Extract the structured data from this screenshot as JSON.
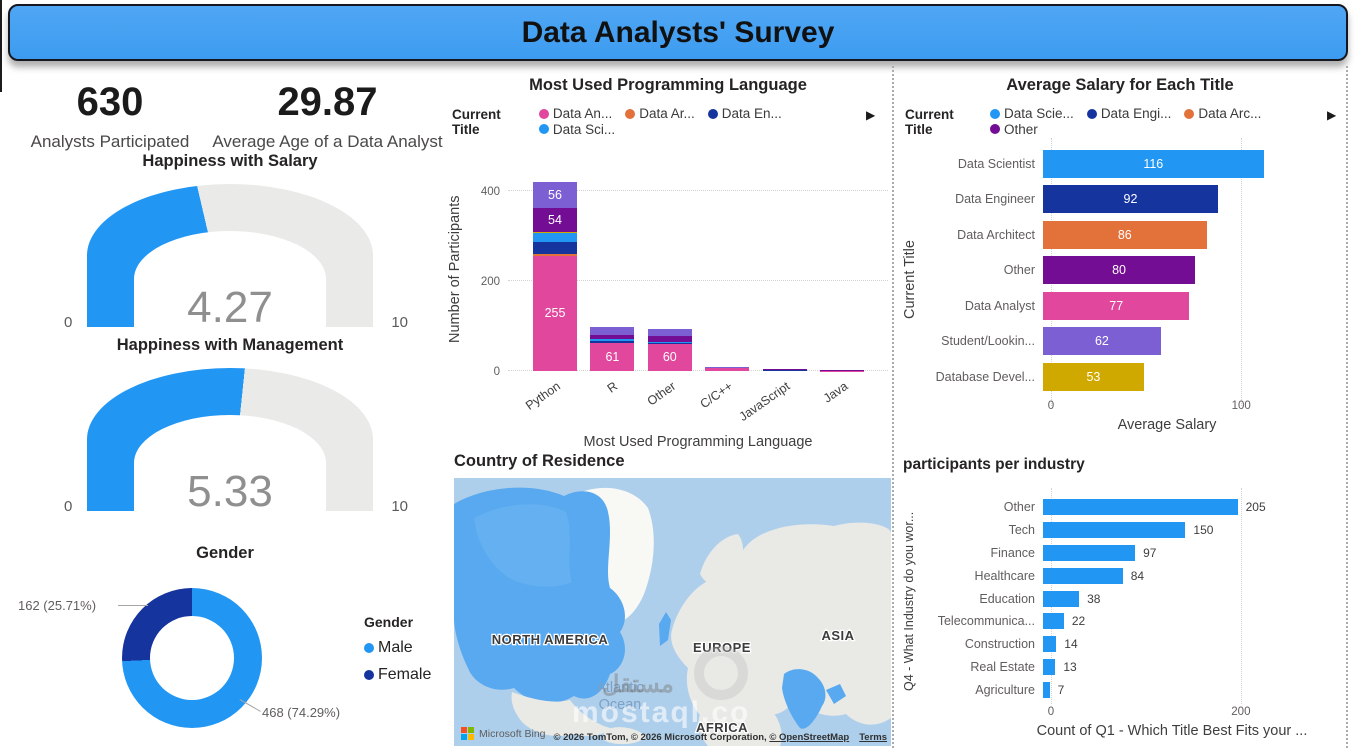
{
  "banner": {
    "title": "Data Analysts' Survey"
  },
  "kpis": [
    {
      "value": "630",
      "label": "Analysts Participated"
    },
    {
      "value": "29.87",
      "label": "Average Age of a Data Analyst"
    }
  ],
  "map": {
    "title": "Country of Residence",
    "labels": {
      "north_america": "NORTH AMERICA",
      "europe": "EUROPE",
      "asia": "ASIA",
      "africa": "AFRICA",
      "ocean1": "Atlantic",
      "ocean2": "Ocean"
    },
    "bing_logo_text": "Microsoft Bing",
    "attribution": "© 2026 TomTom, © 2026 Microsoft Corporation, ",
    "osm_link": "© OpenStreetMap",
    "terms_link": "Terms",
    "highlight_color": "#58A9EF",
    "land_color": "#E9E9E6",
    "ocean_color": "#AECFEB"
  },
  "watermark": {
    "arabic": "مستقل",
    "latin": "mostaql.co"
  },
  "chart_data": [
    {
      "id": "programming-language",
      "type": "bar",
      "stacked": true,
      "title": "Most Used Programming Language",
      "legend_title": "Current Title",
      "more_icon": "▶",
      "legend": [
        {
          "label": "Data An...",
          "color": "#E0479D"
        },
        {
          "label": "Data Ar...",
          "color": "#E2713A"
        },
        {
          "label": "Data En...",
          "color": "#16349E"
        },
        {
          "label": "Data Sci...",
          "color": "#2196F3"
        }
      ],
      "ylabel": "Number of Participants",
      "xlabel": "Most Used Programming Language",
      "yticks": [
        0,
        200,
        400
      ],
      "ymax": 450,
      "categories": [
        "Python",
        "R",
        "Other",
        "C/C++",
        "JavaScript",
        "Java"
      ],
      "bars": [
        {
          "category": "Python",
          "segments": [
            {
              "name": "Data Analyst",
              "value": 255,
              "color": "#E0479D",
              "show": true
            },
            {
              "name": "Data Architect",
              "value": 4,
              "color": "#E2713A"
            },
            {
              "name": "Data Engineer",
              "value": 28,
              "color": "#16349E"
            },
            {
              "name": "Data Scientist",
              "value": 18,
              "color": "#2196F3"
            },
            {
              "name": "Database Developer",
              "value": 3,
              "color": "#D0A900"
            },
            {
              "name": "Other",
              "value": 54,
              "color": "#730D93",
              "show": true
            },
            {
              "name": "Student/Looking",
              "value": 56,
              "color": "#7C5FD3",
              "show": true
            }
          ]
        },
        {
          "category": "R",
          "segments": [
            {
              "name": "Data Analyst",
              "value": 61,
              "color": "#E0479D",
              "show": true
            },
            {
              "name": "Data Engineer",
              "value": 5,
              "color": "#16349E"
            },
            {
              "name": "Data Scientist",
              "value": 4,
              "color": "#2196F3"
            },
            {
              "name": "Other",
              "value": 10,
              "color": "#730D93"
            },
            {
              "name": "Student/Looking",
              "value": 18,
              "color": "#7C5FD3"
            }
          ]
        },
        {
          "category": "Other",
          "segments": [
            {
              "name": "Data Analyst",
              "value": 60,
              "color": "#E0479D",
              "show": true
            },
            {
              "name": "Data Engineer",
              "value": 3,
              "color": "#16349E"
            },
            {
              "name": "Data Scientist",
              "value": 2,
              "color": "#2196F3"
            },
            {
              "name": "Other",
              "value": 12,
              "color": "#730D93"
            },
            {
              "name": "Student/Looking",
              "value": 16,
              "color": "#7C5FD3"
            }
          ]
        },
        {
          "category": "C/C++",
          "segments": [
            {
              "name": "Data Analyst",
              "value": 6,
              "color": "#E0479D"
            },
            {
              "name": "Student/Looking",
              "value": 2,
              "color": "#7C5FD3"
            }
          ]
        },
        {
          "category": "JavaScript",
          "segments": [
            {
              "name": "Data Engineer",
              "value": 3,
              "color": "#16349E"
            },
            {
              "name": "Other",
              "value": 2,
              "color": "#730D93"
            }
          ]
        },
        {
          "category": "Java",
          "segments": [
            {
              "name": "Data Analyst",
              "value": 1,
              "color": "#E0479D"
            },
            {
              "name": "Other",
              "value": 1,
              "color": "#730D93"
            }
          ]
        }
      ]
    },
    {
      "id": "average-salary",
      "type": "bar",
      "orientation": "horizontal",
      "title": "Average Salary for Each Title",
      "legend_title": "Current Title",
      "more_icon": "▶",
      "legend": [
        {
          "label": "Data Scie...",
          "color": "#2196F3"
        },
        {
          "label": "Data Engi...",
          "color": "#16349E"
        },
        {
          "label": "Data Arc...",
          "color": "#E2713A"
        },
        {
          "label": "Other",
          "color": "#730D93"
        }
      ],
      "ylabel": "Current Title",
      "xlabel": "Average Salary",
      "xticks": [
        0,
        100
      ],
      "xmax": 122,
      "value_inside": true,
      "bars": [
        {
          "label": "Data Scientist",
          "value": 116,
          "color": "#2196F3"
        },
        {
          "label": "Data Engineer",
          "value": 92,
          "color": "#16349E"
        },
        {
          "label": "Data Architect",
          "value": 86,
          "color": "#E2713A"
        },
        {
          "label": "Other",
          "value": 80,
          "color": "#730D93"
        },
        {
          "label": "Data Analyst",
          "value": 77,
          "color": "#E0479D"
        },
        {
          "label": "Student/Lookin...",
          "value": 62,
          "color": "#7C5FD3"
        },
        {
          "label": "Database Devel...",
          "value": 53,
          "color": "#D0A900"
        }
      ]
    },
    {
      "id": "participants-per-industry",
      "type": "bar",
      "orientation": "horizontal",
      "title": "participants per industry",
      "ylabel": "Q4 - What Industry do you wor...",
      "xlabel": "Count of Q1 - Which Title Best Fits your ...",
      "xticks": [
        0,
        200
      ],
      "xmax": 257,
      "bar_color": "#2196F3",
      "value_inside": false,
      "bars": [
        {
          "label": "Other",
          "value": 205
        },
        {
          "label": "Tech",
          "value": 150
        },
        {
          "label": "Finance",
          "value": 97
        },
        {
          "label": "Healthcare",
          "value": 84
        },
        {
          "label": "Education",
          "value": 38
        },
        {
          "label": "Telecommunica...",
          "value": 22
        },
        {
          "label": "Construction",
          "value": 14
        },
        {
          "label": "Real Estate",
          "value": 13
        },
        {
          "label": "Agriculture",
          "value": 7
        }
      ]
    },
    {
      "id": "gender",
      "type": "pie",
      "title": "Gender",
      "legend_title": "Gender",
      "total": 630,
      "slices": [
        {
          "label": "Male",
          "value": 468,
          "pct": "74.29%",
          "color": "#2196F3",
          "callout": "468 (74.29%)"
        },
        {
          "label": "Female",
          "value": 162,
          "pct": "25.71%",
          "color": "#16349E",
          "callout": "162 (25.71%)"
        }
      ]
    },
    {
      "id": "happiness-salary",
      "type": "gauge",
      "title": "Happiness with Salary",
      "value": 4.27,
      "display": "4.27",
      "min": 0,
      "max": 10,
      "min_label": "0",
      "max_label": "10",
      "fill_color": "#2196F3",
      "track_color": "#EAEAE8"
    },
    {
      "id": "happiness-management",
      "type": "gauge",
      "title": "Happiness with Management",
      "value": 5.33,
      "display": "5.33",
      "min": 0,
      "max": 10,
      "min_label": "0",
      "max_label": "10",
      "fill_color": "#2196F3",
      "track_color": "#EAEAE8"
    }
  ]
}
